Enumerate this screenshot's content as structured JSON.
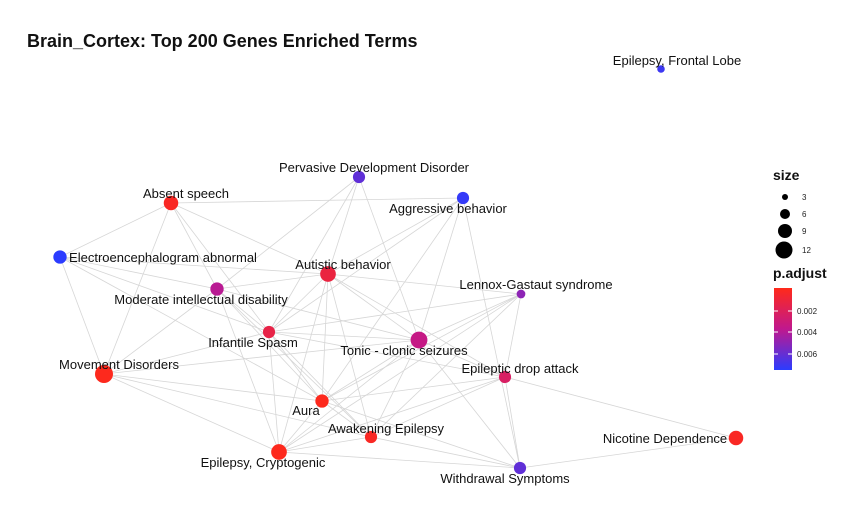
{
  "title": "Brain_Cortex: Top 200 Genes Enriched Terms",
  "legend": {
    "size_title": "size",
    "size_values": [
      "3",
      "6",
      "9",
      "12"
    ],
    "color_title": "p.adjust",
    "color_ticks": [
      "0.002",
      "0.004",
      "0.006"
    ]
  },
  "nodes": [
    {
      "id": "n0",
      "label": "Epilepsy, Frontal Lobe",
      "size": 1,
      "p": 0.0068
    },
    {
      "id": "n1",
      "label": "Pervasive Development Disorder",
      "size": 5,
      "p": 0.006
    },
    {
      "id": "n2",
      "label": "Aggressive behavior",
      "size": 5,
      "p": 0.007
    },
    {
      "id": "n3",
      "label": "Absent speech",
      "size": 7,
      "p": 0.0008
    },
    {
      "id": "n4",
      "label": "Electroencephalogram abnormal",
      "size": 6,
      "p": 0.0072
    },
    {
      "id": "n5",
      "label": "Autistic behavior",
      "size": 8,
      "p": 0.0016
    },
    {
      "id": "n6",
      "label": "Moderate intellectual disability",
      "size": 6,
      "p": 0.004
    },
    {
      "id": "n7",
      "label": "Lennox-Gastaut syndrome",
      "size": 2,
      "p": 0.005
    },
    {
      "id": "n8",
      "label": "Infantile Spasm",
      "size": 5,
      "p": 0.0018
    },
    {
      "id": "n9",
      "label": "Tonic - clonic seizures",
      "size": 9,
      "p": 0.0036
    },
    {
      "id": "n10",
      "label": "Movement Disorders",
      "size": 10,
      "p": 0.0006
    },
    {
      "id": "n11",
      "label": "Epileptic drop attack",
      "size": 5,
      "p": 0.0026
    },
    {
      "id": "n12",
      "label": "Aura",
      "size": 6,
      "p": 0.0006
    },
    {
      "id": "n13",
      "label": "Awakening Epilepsy",
      "size": 5,
      "p": 0.0008
    },
    {
      "id": "n14",
      "label": "Nicotine Dependence",
      "size": 7,
      "p": 0.0008
    },
    {
      "id": "n15",
      "label": "Epilepsy, Cryptogenic",
      "size": 8,
      "p": 0.0006
    },
    {
      "id": "n16",
      "label": "Withdrawal Symptoms",
      "size": 5,
      "p": 0.006
    }
  ],
  "edges": [
    [
      "n3",
      "n4"
    ],
    [
      "n3",
      "n6"
    ],
    [
      "n3",
      "n5"
    ],
    [
      "n3",
      "n10"
    ],
    [
      "n3",
      "n2"
    ],
    [
      "n3",
      "n8"
    ],
    [
      "n4",
      "n10"
    ],
    [
      "n4",
      "n6"
    ],
    [
      "n4",
      "n5"
    ],
    [
      "n4",
      "n8"
    ],
    [
      "n4",
      "n12"
    ],
    [
      "n1",
      "n5"
    ],
    [
      "n1",
      "n6"
    ],
    [
      "n1",
      "n9"
    ],
    [
      "n1",
      "n8"
    ],
    [
      "n2",
      "n8"
    ],
    [
      "n2",
      "n9"
    ],
    [
      "n2",
      "n12"
    ],
    [
      "n2",
      "n16"
    ],
    [
      "n2",
      "n5"
    ],
    [
      "n5",
      "n6"
    ],
    [
      "n5",
      "n8"
    ],
    [
      "n5",
      "n9"
    ],
    [
      "n5",
      "n12"
    ],
    [
      "n5",
      "n15"
    ],
    [
      "n5",
      "n7"
    ],
    [
      "n5",
      "n13"
    ],
    [
      "n5",
      "n11"
    ],
    [
      "n6",
      "n10"
    ],
    [
      "n6",
      "n8"
    ],
    [
      "n6",
      "n9"
    ],
    [
      "n6",
      "n15"
    ],
    [
      "n6",
      "n12"
    ],
    [
      "n6",
      "n13"
    ],
    [
      "n7",
      "n8"
    ],
    [
      "n7",
      "n9"
    ],
    [
      "n7",
      "n11"
    ],
    [
      "n7",
      "n12"
    ],
    [
      "n7",
      "n15"
    ],
    [
      "n7",
      "n13"
    ],
    [
      "n8",
      "n9"
    ],
    [
      "n8",
      "n10"
    ],
    [
      "n8",
      "n12"
    ],
    [
      "n8",
      "n15"
    ],
    [
      "n8",
      "n13"
    ],
    [
      "n8",
      "n11"
    ],
    [
      "n9",
      "n10"
    ],
    [
      "n9",
      "n12"
    ],
    [
      "n9",
      "n15"
    ],
    [
      "n9",
      "n13"
    ],
    [
      "n9",
      "n11"
    ],
    [
      "n9",
      "n16"
    ],
    [
      "n10",
      "n12"
    ],
    [
      "n10",
      "n15"
    ],
    [
      "n10",
      "n13"
    ],
    [
      "n11",
      "n12"
    ],
    [
      "n11",
      "n13"
    ],
    [
      "n11",
      "n14"
    ],
    [
      "n11",
      "n16"
    ],
    [
      "n11",
      "n15"
    ],
    [
      "n12",
      "n13"
    ],
    [
      "n12",
      "n15"
    ],
    [
      "n12",
      "n16"
    ],
    [
      "n13",
      "n15"
    ],
    [
      "n13",
      "n16"
    ],
    [
      "n15",
      "n16"
    ],
    [
      "n16",
      "n14"
    ]
  ]
}
